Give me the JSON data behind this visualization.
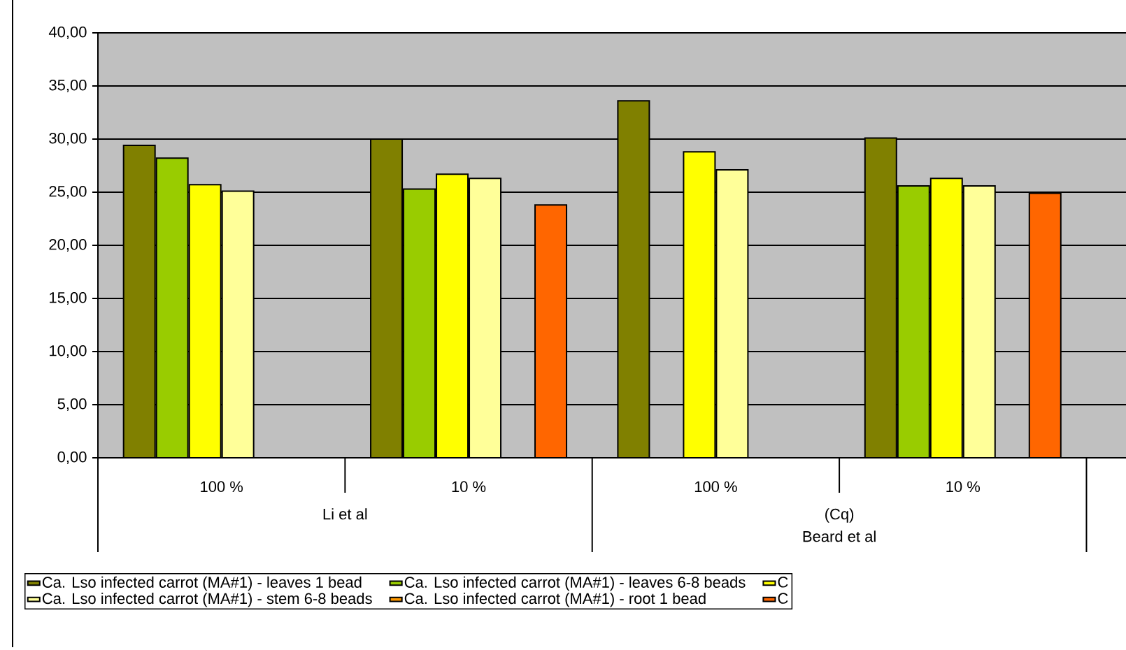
{
  "chart_data": {
    "type": "bar",
    "categories": [
      "100 %",
      "10 %",
      "100 %",
      "10 %"
    ],
    "series": [
      {
        "name": "Ca. Lso infected carrot (MA#1) - leaves 1 bead",
        "color": "#808000",
        "values": [
          29.4,
          30.0,
          33.6,
          30.1
        ]
      },
      {
        "name": "Ca. Lso infected carrot (MA#1) - leaves 6-8 beads",
        "color": "#99cc00",
        "values": [
          28.2,
          25.3,
          null,
          25.6
        ]
      },
      {
        "name": "C",
        "color": "#ffff00",
        "values": [
          25.7,
          26.7,
          28.8,
          26.3
        ]
      },
      {
        "name": "Ca. Lso infected carrot (MA#1) - stem 6-8 beads",
        "color": "#ffff99",
        "values": [
          25.1,
          26.3,
          27.1,
          25.6
        ]
      },
      {
        "name": "Ca. Lso infected carrot (MA#1) - root 1 bead",
        "color": "#ff9900",
        "values": [
          null,
          null,
          null,
          null
        ]
      },
      {
        "name": "C",
        "color": "#ff6600",
        "values": [
          null,
          23.8,
          null,
          24.9
        ]
      }
    ],
    "annotations": [
      "Li et al",
      "(Cq)\nBeard et al"
    ],
    "ylim": [
      0,
      40
    ],
    "yticks": [
      {
        "value": 0,
        "label": "0,00"
      },
      {
        "value": 5,
        "label": "5,00"
      },
      {
        "value": 10,
        "label": "10,00"
      },
      {
        "value": 15,
        "label": "15,00"
      },
      {
        "value": 20,
        "label": "20,00"
      },
      {
        "value": 25,
        "label": "25,00"
      },
      {
        "value": 30,
        "label": "30,00"
      },
      {
        "value": 35,
        "label": "35,00"
      },
      {
        "value": 40,
        "label": "40,00"
      }
    ],
    "grid": "y",
    "legend": "bottom"
  }
}
